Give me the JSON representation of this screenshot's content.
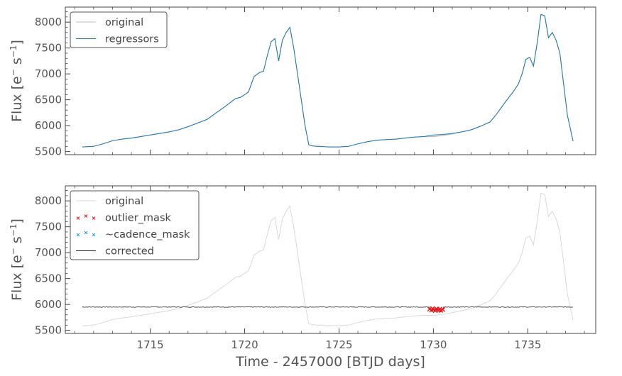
{
  "colors": {
    "original": "#bbbbbb",
    "regressors": "#1f77b4",
    "outlier": "#e41a1c",
    "cadence": "#1f9bd7",
    "corrected": "#222222",
    "axis": "#444444"
  },
  "chart_data": [
    {
      "type": "line",
      "ylabel_main": "Flux [e",
      "ylabel_sup1": "−",
      "ylabel_mid": " s",
      "ylabel_sup2": "−1",
      "ylabel_end": "]",
      "xlim": [
        1710.5,
        1738.6
      ],
      "ylim": [
        5440,
        8290
      ],
      "yticks": [
        5500,
        6000,
        6500,
        7000,
        7500,
        8000
      ],
      "xticks": [
        1715,
        1720,
        1725,
        1730,
        1735
      ],
      "legend": {
        "placement": "top-left",
        "entries": [
          "original",
          "regressors"
        ]
      },
      "series": [
        {
          "name": "original",
          "x": [
            1711.4,
            1712.0,
            1712.5,
            1713.0,
            1713.5,
            1714.0,
            1714.5,
            1715.0,
            1715.5,
            1716.0,
            1716.5,
            1717.0,
            1717.5,
            1718.0,
            1718.5,
            1719.0,
            1719.5,
            1719.8,
            1720.2,
            1720.5,
            1720.8,
            1721.0,
            1721.2,
            1721.4,
            1721.6,
            1721.8,
            1722.0,
            1722.2,
            1722.4,
            1722.6,
            1722.8,
            1723.0,
            1723.2,
            1723.4,
            1723.6,
            1723.8,
            1724.0,
            1724.2,
            1724.5,
            1725.0,
            1725.5,
            1726.0,
            1726.5,
            1727.0,
            1727.5,
            1728.0,
            1728.5,
            1729.0,
            1729.5,
            1730.0,
            1730.5,
            1731.0,
            1731.5,
            1732.0,
            1732.5,
            1733.0,
            1733.3,
            1733.6,
            1733.9,
            1734.2,
            1734.5,
            1734.7,
            1734.9,
            1735.1,
            1735.3,
            1735.5,
            1735.7,
            1735.9,
            1736.1,
            1736.3,
            1736.5,
            1736.7,
            1736.9,
            1737.1,
            1737.4
          ],
          "y": [
            5590,
            5600,
            5650,
            5710,
            5740,
            5760,
            5790,
            5820,
            5850,
            5880,
            5920,
            5980,
            6050,
            6120,
            6250,
            6380,
            6520,
            6550,
            6650,
            6950,
            7030,
            7050,
            7350,
            7620,
            7680,
            7250,
            7650,
            7800,
            7900,
            7500,
            7000,
            6500,
            6000,
            5630,
            5610,
            5600,
            5600,
            5595,
            5590,
            5590,
            5600,
            5650,
            5690,
            5720,
            5730,
            5740,
            5760,
            5780,
            5790,
            5790,
            5810,
            5840,
            5880,
            5920,
            5990,
            6070,
            6200,
            6350,
            6500,
            6640,
            6800,
            7000,
            7280,
            7320,
            7150,
            7600,
            8150,
            8120,
            7700,
            7800,
            7650,
            7400,
            6800,
            6200,
            5700
          ]
        },
        {
          "name": "regressors",
          "x": [
            1711.4,
            1712.0,
            1712.5,
            1713.0,
            1713.5,
            1714.0,
            1714.5,
            1715.0,
            1715.5,
            1716.0,
            1716.5,
            1717.0,
            1717.5,
            1718.0,
            1718.5,
            1719.0,
            1719.5,
            1719.8,
            1720.2,
            1720.5,
            1720.8,
            1721.0,
            1721.2,
            1721.4,
            1721.6,
            1721.8,
            1722.0,
            1722.2,
            1722.4,
            1722.6,
            1722.8,
            1723.0,
            1723.2,
            1723.4,
            1723.6,
            1723.8,
            1724.0,
            1724.2,
            1724.5,
            1725.0,
            1725.5,
            1726.0,
            1726.5,
            1727.0,
            1727.5,
            1728.0,
            1728.5,
            1729.0,
            1729.5,
            1730.0,
            1730.5,
            1731.0,
            1731.5,
            1732.0,
            1732.5,
            1733.0,
            1733.3,
            1733.6,
            1733.9,
            1734.2,
            1734.5,
            1734.7,
            1734.9,
            1735.1,
            1735.3,
            1735.5,
            1735.7,
            1735.9,
            1736.1,
            1736.3,
            1736.5,
            1736.7,
            1736.9,
            1737.1,
            1737.4
          ],
          "y": [
            5590,
            5600,
            5650,
            5710,
            5740,
            5760,
            5790,
            5820,
            5850,
            5880,
            5920,
            5980,
            6050,
            6120,
            6250,
            6380,
            6520,
            6550,
            6650,
            6950,
            7030,
            7050,
            7350,
            7620,
            7680,
            7250,
            7650,
            7800,
            7900,
            7500,
            7000,
            6500,
            6000,
            5630,
            5610,
            5600,
            5600,
            5595,
            5590,
            5590,
            5600,
            5650,
            5690,
            5720,
            5730,
            5740,
            5760,
            5780,
            5790,
            5820,
            5830,
            5850,
            5880,
            5920,
            5990,
            6070,
            6200,
            6350,
            6500,
            6640,
            6800,
            7000,
            7280,
            7320,
            7150,
            7600,
            8150,
            8120,
            7700,
            7800,
            7650,
            7400,
            6800,
            6200,
            5700
          ]
        }
      ]
    },
    {
      "type": "line",
      "xlabel": "Time - 2457000 [BTJD days]",
      "ylabel_main": "Flux [e",
      "ylabel_sup1": "−",
      "ylabel_mid": " s",
      "ylabel_sup2": "−1",
      "ylabel_end": "]",
      "xlim": [
        1710.5,
        1738.6
      ],
      "ylim": [
        5440,
        8290
      ],
      "yticks": [
        5500,
        6000,
        6500,
        7000,
        7500,
        8000
      ],
      "xticks": [
        1715,
        1720,
        1725,
        1730,
        1735
      ],
      "xtick_labels": [
        "1715",
        "1720",
        "1725",
        "1730",
        "1735"
      ],
      "legend": {
        "placement": "top-left",
        "entries": [
          "original",
          "outlier_mask",
          "~cadence_mask",
          "corrected"
        ]
      },
      "series": [
        {
          "name": "original",
          "same_as": "panel 1 original"
        },
        {
          "name": "outlier_mask",
          "marker": "x",
          "x": [
            1729.8,
            1729.9,
            1730.0,
            1730.1,
            1730.2,
            1730.3,
            1730.4,
            1730.5,
            1729.95,
            1730.15,
            1730.35
          ],
          "y": [
            5910,
            5890,
            5900,
            5880,
            5905,
            5890,
            5885,
            5900,
            5920,
            5915,
            5910
          ]
        },
        {
          "name": "~cadence_mask",
          "marker": "x",
          "x": [],
          "y": []
        },
        {
          "name": "corrected",
          "level": 5950,
          "x_range": [
            1711.4,
            1737.4
          ],
          "jitter": 12,
          "dip": {
            "x_range": [
              1729.8,
              1730.5
            ],
            "level": 5900
          }
        }
      ]
    }
  ]
}
